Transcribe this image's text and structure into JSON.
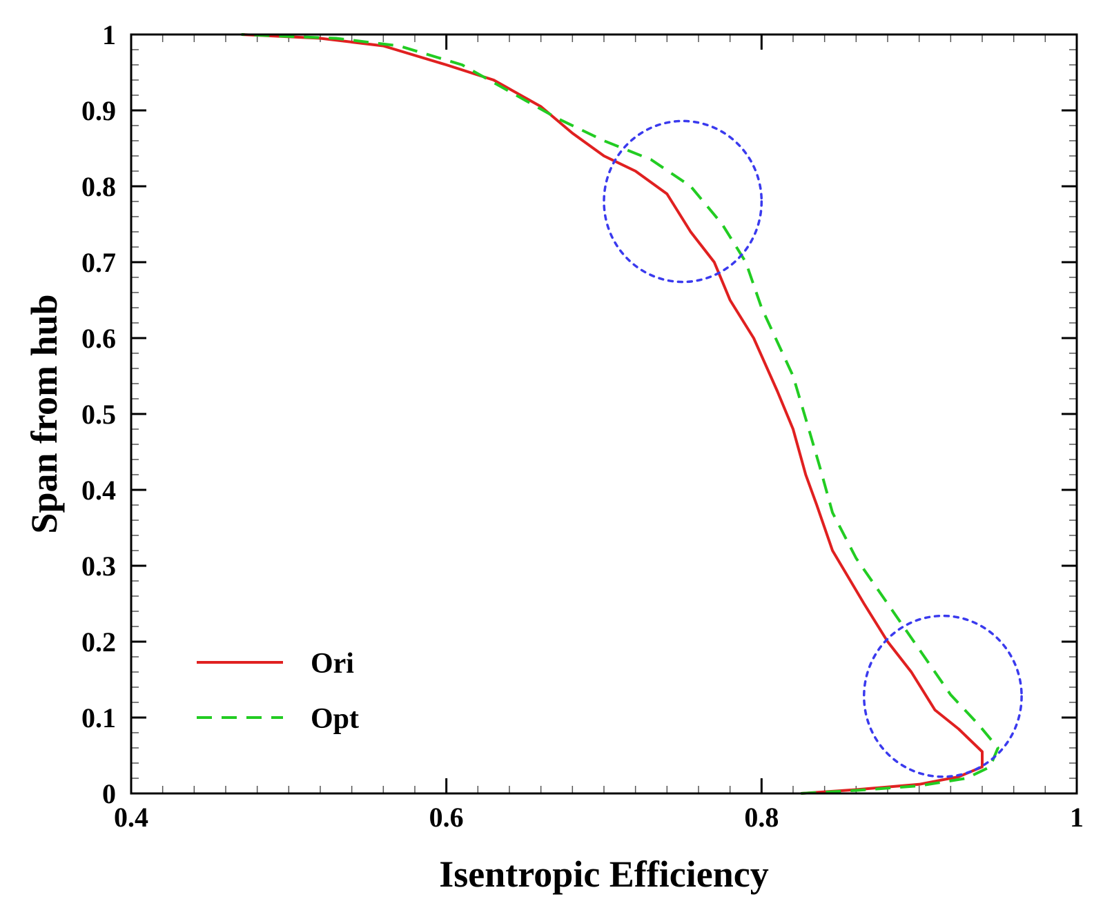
{
  "chart_data": {
    "type": "line",
    "xlabel": "Isentropic Efficiency",
    "ylabel": "Span from hub",
    "xlim": [
      0.4,
      1.0
    ],
    "ylim": [
      0.0,
      1.0
    ],
    "x_ticks": [
      {
        "value": 0.4,
        "label": "0.4"
      },
      {
        "value": 0.6,
        "label": "0.6"
      },
      {
        "value": 0.8,
        "label": "0.8"
      },
      {
        "value": 1.0,
        "label": "1"
      }
    ],
    "y_ticks": [
      {
        "value": 0.0,
        "label": "0"
      },
      {
        "value": 0.1,
        "label": "0.1"
      },
      {
        "value": 0.2,
        "label": "0.2"
      },
      {
        "value": 0.3,
        "label": "0.3"
      },
      {
        "value": 0.4,
        "label": "0.4"
      },
      {
        "value": 0.5,
        "label": "0.5"
      },
      {
        "value": 0.6,
        "label": "0.6"
      },
      {
        "value": 0.7,
        "label": "0.7"
      },
      {
        "value": 0.8,
        "label": "0.8"
      },
      {
        "value": 0.9,
        "label": "0.9"
      },
      {
        "value": 1.0,
        "label": "1"
      }
    ],
    "grid": false,
    "legend_position": "bottom-left",
    "series": [
      {
        "name": "Ori",
        "color": "#e02020",
        "style": "solid",
        "points": [
          [
            0.825,
            0.0
          ],
          [
            0.86,
            0.005
          ],
          [
            0.9,
            0.012
          ],
          [
            0.925,
            0.022
          ],
          [
            0.94,
            0.035
          ],
          [
            0.94,
            0.055
          ],
          [
            0.925,
            0.085
          ],
          [
            0.91,
            0.11
          ],
          [
            0.895,
            0.16
          ],
          [
            0.88,
            0.2
          ],
          [
            0.865,
            0.25
          ],
          [
            0.845,
            0.32
          ],
          [
            0.835,
            0.38
          ],
          [
            0.828,
            0.42
          ],
          [
            0.82,
            0.48
          ],
          [
            0.81,
            0.53
          ],
          [
            0.795,
            0.6
          ],
          [
            0.78,
            0.65
          ],
          [
            0.77,
            0.7
          ],
          [
            0.755,
            0.74
          ],
          [
            0.74,
            0.79
          ],
          [
            0.72,
            0.82
          ],
          [
            0.7,
            0.84
          ],
          [
            0.68,
            0.87
          ],
          [
            0.66,
            0.905
          ],
          [
            0.63,
            0.94
          ],
          [
            0.6,
            0.96
          ],
          [
            0.56,
            0.985
          ],
          [
            0.52,
            0.995
          ],
          [
            0.47,
            1.0
          ]
        ]
      },
      {
        "name": "Opt",
        "color": "#22cc22",
        "style": "dashed",
        "points": [
          [
            0.825,
            0.0
          ],
          [
            0.86,
            0.004
          ],
          [
            0.9,
            0.01
          ],
          [
            0.93,
            0.02
          ],
          [
            0.945,
            0.035
          ],
          [
            0.95,
            0.06
          ],
          [
            0.938,
            0.09
          ],
          [
            0.92,
            0.13
          ],
          [
            0.9,
            0.19
          ],
          [
            0.88,
            0.25
          ],
          [
            0.86,
            0.31
          ],
          [
            0.845,
            0.37
          ],
          [
            0.837,
            0.43
          ],
          [
            0.83,
            0.48
          ],
          [
            0.82,
            0.55
          ],
          [
            0.8,
            0.64
          ],
          [
            0.79,
            0.7
          ],
          [
            0.775,
            0.75
          ],
          [
            0.755,
            0.8
          ],
          [
            0.73,
            0.835
          ],
          [
            0.7,
            0.86
          ],
          [
            0.67,
            0.89
          ],
          [
            0.64,
            0.925
          ],
          [
            0.61,
            0.96
          ],
          [
            0.57,
            0.985
          ],
          [
            0.53,
            0.995
          ],
          [
            0.47,
            1.0
          ]
        ]
      }
    ],
    "annotations": [
      {
        "type": "dotted-circle",
        "color": "#3a3aee",
        "cx": 0.75,
        "cy": 0.78,
        "rx": 0.05,
        "ry": 0.106
      },
      {
        "type": "dotted-circle",
        "color": "#3a3aee",
        "cx": 0.915,
        "cy": 0.128,
        "rx": 0.05,
        "ry": 0.106
      }
    ]
  }
}
